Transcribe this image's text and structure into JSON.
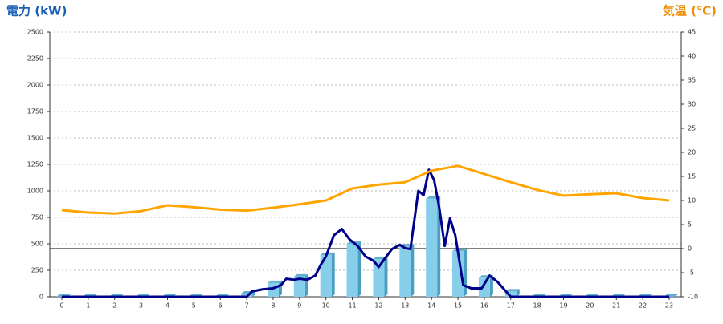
{
  "chart_data": {
    "type": "bar",
    "y_title": "電力 (kW)",
    "y2_title": "気温 (℃)",
    "categories": [
      "0",
      "1",
      "2",
      "3",
      "4",
      "5",
      "6",
      "7",
      "8",
      "9",
      "10",
      "11",
      "12",
      "13",
      "14",
      "15",
      "16",
      "17",
      "18",
      "19",
      "20",
      "21",
      "22",
      "23"
    ],
    "ylim": [
      0,
      2500
    ],
    "yticks": [
      0,
      250,
      500,
      750,
      1000,
      1250,
      1500,
      1750,
      2000,
      2250,
      2500
    ],
    "y2lim": [
      -10,
      45
    ],
    "y2ticks": [
      -10,
      -5,
      0,
      5,
      10,
      15,
      20,
      25,
      30,
      35,
      40,
      45
    ],
    "grid": true,
    "series": [
      {
        "type": "bar",
        "color": "#87ceeb",
        "values": [
          0,
          0,
          0,
          0,
          0,
          0,
          0,
          30,
          130,
          190,
          395,
          500,
          355,
          475,
          925,
          430,
          180,
          50,
          0,
          0,
          0,
          0,
          0,
          0
        ]
      },
      {
        "type": "line",
        "color": "#00008b",
        "x": [
          0,
          7,
          7.2,
          7.6,
          8,
          8.3,
          8.5,
          8.8,
          9,
          9.3,
          9.6,
          9.8,
          10,
          10.3,
          10.6,
          10.9,
          11.2,
          11.5,
          11.8,
          12,
          12.2,
          12.5,
          12.8,
          13,
          13.2,
          13.5,
          13.7,
          13.9,
          14.1,
          14.3,
          14.5,
          14.7,
          14.9,
          15.2,
          15.5,
          15.9,
          16.2,
          16.5,
          17,
          23
        ],
        "values": [
          0,
          0,
          50,
          70,
          80,
          110,
          170,
          160,
          170,
          160,
          200,
          300,
          380,
          580,
          640,
          540,
          480,
          380,
          340,
          280,
          350,
          450,
          490,
          460,
          450,
          1000,
          960,
          1200,
          1100,
          830,
          480,
          740,
          580,
          110,
          80,
          80,
          200,
          140,
          0,
          0
        ]
      },
      {
        "type": "line",
        "axis": "y2",
        "color": "#ffa500",
        "values": [
          8,
          7.5,
          7.3,
          7.8,
          9,
          8.6,
          8.1,
          7.9,
          8.5,
          9.2,
          10,
          12.5,
          13.3,
          13.8,
          16.2,
          17.2,
          15.5,
          13.8,
          12.2,
          11,
          11.3,
          11.5,
          10.5,
          10
        ]
      }
    ]
  }
}
